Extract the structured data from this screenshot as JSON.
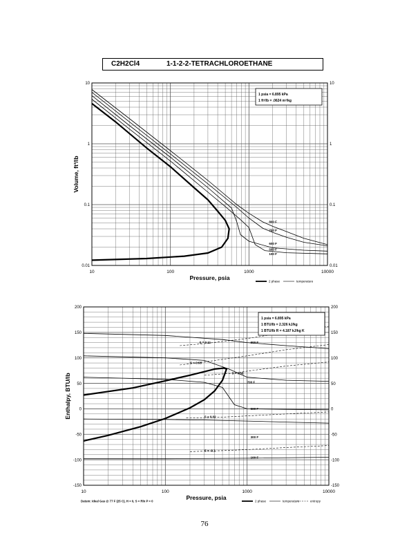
{
  "page": {
    "formula": "C2H2Cl4",
    "compound": "1-1-2-2-TETRACHLOROETHANE",
    "page_number": "76"
  },
  "chart_data": [
    {
      "type": "line",
      "xscale": "log",
      "yscale": "log",
      "xlabel": "Pressure,  psia",
      "ylabel": "Volume, ft^3/lb",
      "xlim": [
        10,
        10000
      ],
      "ylim": [
        0.01,
        10
      ],
      "xticks": [
        "10",
        "100",
        "1000",
        "10000"
      ],
      "yticks": [
        "10",
        "1",
        "0.1",
        "0.01"
      ],
      "grid": true,
      "notes": [
        "1 psia  =  6.895 kPa",
        "1 ft^3/lb  =  .0624 m^3/kg"
      ],
      "legend": [
        {
          "label": "2 phase",
          "style": "thick"
        },
        {
          "label": "temperature",
          "style": "thin"
        }
      ],
      "series": [
        {
          "name": "2 phase",
          "points": [
            [
              10,
              4.6
            ],
            [
              20,
              2.3
            ],
            [
              50,
              0.85
            ],
            [
              100,
              0.42
            ],
            [
              200,
              0.19
            ],
            [
              300,
              0.12
            ],
            [
              400,
              0.078
            ],
            [
              500,
              0.055
            ],
            [
              560,
              0.04
            ],
            [
              540,
              0.028
            ],
            [
              450,
              0.02
            ],
            [
              300,
              0.016
            ],
            [
              150,
              0.0142
            ],
            [
              50,
              0.013
            ],
            [
              10,
              0.0122
            ]
          ]
        },
        {
          "name": "500 F",
          "points": [
            [
              10,
              5.4
            ],
            [
              30,
              1.75
            ],
            [
              100,
              0.52
            ],
            [
              300,
              0.16
            ],
            [
              500,
              0.093
            ],
            [
              800,
              0.055
            ],
            [
              1000,
              0.042
            ],
            [
              1200,
              0.022
            ],
            [
              1600,
              0.0175
            ],
            [
              3000,
              0.0162
            ],
            [
              10000,
              0.0155
            ]
          ]
        },
        {
          "name": "600 F",
          "points": [
            [
              10,
              6.2
            ],
            [
              30,
              2.0
            ],
            [
              100,
              0.6
            ],
            [
              300,
              0.19
            ],
            [
              600,
              0.088
            ],
            [
              700,
              0.052
            ],
            [
              780,
              0.032
            ],
            [
              1000,
              0.025
            ],
            [
              2000,
              0.0195
            ],
            [
              5000,
              0.0178
            ],
            [
              10000,
              0.0172
            ]
          ]
        },
        {
          "name": "700 F",
          "points": [
            [
              10,
              7.0
            ],
            [
              30,
              2.3
            ],
            [
              100,
              0.68
            ],
            [
              300,
              0.22
            ],
            [
              700,
              0.09
            ],
            [
              1000,
              0.06
            ],
            [
              1500,
              0.041
            ],
            [
              2000,
              0.035
            ],
            [
              3000,
              0.029
            ],
            [
              5000,
              0.024
            ],
            [
              10000,
              0.021
            ]
          ]
        },
        {
          "name": "800 F",
          "points": [
            [
              10,
              7.8
            ],
            [
              30,
              2.6
            ],
            [
              100,
              0.77
            ],
            [
              300,
              0.25
            ],
            [
              700,
              0.1
            ],
            [
              1000,
              0.072
            ],
            [
              1500,
              0.052
            ],
            [
              2000,
              0.044
            ],
            [
              3000,
              0.036
            ],
            [
              5000,
              0.028
            ],
            [
              10000,
              0.022
            ]
          ]
        }
      ],
      "isotherm_labels": [
        {
          "text": "800 F",
          "x": 1800,
          "y": 0.05
        },
        {
          "text": "700 F",
          "x": 1800,
          "y": 0.036
        },
        {
          "text": "600 F",
          "x": 1800,
          "y": 0.022
        },
        {
          "text": "500 F",
          "x": 1800,
          "y": 0.0175
        },
        {
          "text": "100 F",
          "x": 1800,
          "y": 0.0148
        }
      ]
    },
    {
      "type": "line",
      "xscale": "log",
      "yscale": "linear",
      "xlabel": "Pressure,  psia",
      "ylabel": "Enthalpy, BTU/lb",
      "xlim": [
        10,
        10000
      ],
      "ylim": [
        -150,
        200
      ],
      "xticks": [
        "10",
        "100",
        "1000",
        "10000"
      ],
      "yticks": [
        "200",
        "150",
        "100",
        "50",
        "0",
        "-50",
        "-100",
        "-150"
      ],
      "grid": true,
      "notes": [
        "1 psia  =  6.895 kPa",
        "1 BTU/lb  =  2.326 kJ/kg",
        "1 BTU/lb R  =  4.187 kJ/kg K"
      ],
      "footnote": "Datum: Ideal Gas @ 77 F (25 C),  H = 0,  S = Rln P = 0",
      "legend": [
        {
          "label": "2 phase",
          "style": "thick"
        },
        {
          "label": "temperature",
          "style": "thin"
        },
        {
          "label": "entropy",
          "style": "dashed"
        }
      ],
      "series": [
        {
          "name": "2 phase",
          "points": [
            [
              10,
              -63
            ],
            [
              20,
              -52
            ],
            [
              50,
              -35
            ],
            [
              100,
              -19
            ],
            [
              200,
              2
            ],
            [
              300,
              18
            ],
            [
              400,
              35
            ],
            [
              500,
              56
            ],
            [
              560,
              78
            ],
            [
              520,
              80
            ],
            [
              400,
              78
            ],
            [
              200,
              66
            ],
            [
              100,
              55
            ],
            [
              40,
              41
            ],
            [
              10,
              27
            ]
          ]
        },
        {
          "name": "900 F",
          "points": [
            [
              10,
              148
            ],
            [
              100,
              144
            ],
            [
              500,
              136
            ],
            [
              1000,
              130
            ],
            [
              3000,
              124
            ],
            [
              10000,
              118
            ]
          ]
        },
        {
          "name": "700 F",
          "points": [
            [
              10,
              104
            ],
            [
              100,
              100
            ],
            [
              300,
              95
            ],
            [
              600,
              78
            ],
            [
              1000,
              62
            ],
            [
              3000,
              56
            ],
            [
              10000,
              54
            ]
          ]
        },
        {
          "name": "500 F",
          "points": [
            [
              10,
              62
            ],
            [
              100,
              58
            ],
            [
              300,
              52
            ],
            [
              500,
              42
            ],
            [
              700,
              8
            ],
            [
              1000,
              0
            ],
            [
              3000,
              -1
            ],
            [
              10000,
              -2
            ]
          ]
        },
        {
          "name": "300 F",
          "points": [
            [
              10,
              -20
            ],
            [
              100,
              -21
            ],
            [
              300,
              -22
            ],
            [
              1000,
              -24
            ],
            [
              3000,
              -26
            ],
            [
              10000,
              -28
            ]
          ]
        },
        {
          "name": "100 F",
          "points": [
            [
              10,
              -98
            ],
            [
              100,
              -98
            ],
            [
              1000,
              -97
            ],
            [
              10000,
              -95
            ]
          ]
        }
      ],
      "isotherm_labels": [
        {
          "text": "900 F",
          "x": 1100,
          "y": 128
        },
        {
          "text": "700 F",
          "x": 1000,
          "y": 50
        },
        {
          "text": "500 F",
          "x": 1100,
          "y": -2
        },
        {
          "text": "300 F",
          "x": 1100,
          "y": -58
        },
        {
          "text": "100 F",
          "x": 1100,
          "y": -98
        }
      ],
      "entropy_labels": [
        {
          "text": "S = 0.11",
          "x": 260,
          "y": 128
        },
        {
          "text": "S = 0.08",
          "x": 200,
          "y": 88
        },
        {
          "text": "S = 0.06",
          "x": 650,
          "y": 68
        },
        {
          "text": "S = 0.02",
          "x": 300,
          "y": -18
        },
        {
          "text": "S = -0.1",
          "x": 300,
          "y": -84
        }
      ],
      "entropy_lines": [
        {
          "name": "S = 0.11",
          "points": [
            [
              150,
              124
            ],
            [
              300,
              128
            ],
            [
              1000,
              138
            ],
            [
              3000,
              150
            ],
            [
              10000,
              162
            ]
          ]
        },
        {
          "name": "S = 0.08",
          "points": [
            [
              150,
              86
            ],
            [
              300,
              92
            ],
            [
              1000,
              104
            ],
            [
              3000,
              116
            ],
            [
              10000,
              126
            ]
          ]
        },
        {
          "name": "S = 0.06",
          "points": [
            [
              300,
              66
            ],
            [
              700,
              70
            ],
            [
              1000,
              74
            ],
            [
              3000,
              84
            ],
            [
              10000,
              92
            ]
          ]
        },
        {
          "name": "S = 0.02",
          "points": [
            [
              180,
              -18
            ],
            [
              400,
              -17
            ],
            [
              1000,
              -14
            ],
            [
              3000,
              -10
            ],
            [
              10000,
              -6
            ]
          ]
        },
        {
          "name": "S = -0.1",
          "points": [
            [
              200,
              -84
            ],
            [
              500,
              -82
            ],
            [
              1000,
              -80
            ],
            [
              3000,
              -76
            ],
            [
              10000,
              -72
            ]
          ]
        }
      ]
    }
  ]
}
